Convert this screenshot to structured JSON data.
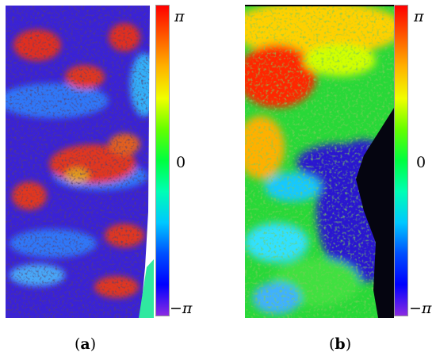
{
  "panels": [
    {
      "caption_open": "(",
      "caption_letter": "a",
      "caption_close": ")",
      "colorbar": {
        "top_label": "π",
        "mid_label": "0",
        "bottom_label": "−π"
      },
      "colors": {
        "background": "#3a1fd0",
        "hot": "#ff3a00",
        "mid": "#2a7bff",
        "dark": "#1a0a20"
      }
    },
    {
      "caption_open": "(",
      "caption_letter": "b",
      "caption_close": ")",
      "colorbar": {
        "top_label": "π",
        "mid_label": "0",
        "bottom_label": "−π"
      },
      "colors": {
        "background": "#20e030",
        "hot": "#ff2a00",
        "mid": "#9aff00",
        "dark": "#000000"
      }
    }
  ]
}
